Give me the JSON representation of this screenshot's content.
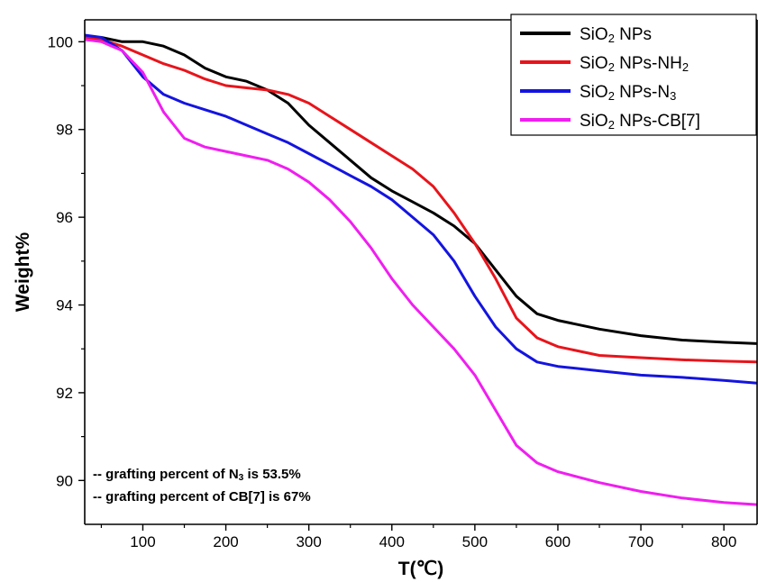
{
  "chart_data": {
    "type": "line",
    "title": "",
    "xlabel": "T(℃)",
    "ylabel": "Weight%",
    "xlim": [
      30,
      840
    ],
    "ylim": [
      89,
      100.5
    ],
    "x_ticks": [
      100,
      200,
      300,
      400,
      500,
      600,
      700,
      800
    ],
    "x_tick_labels": [
      "100",
      "200",
      "300",
      "400",
      "500",
      "600",
      "700",
      "800"
    ],
    "y_ticks": [
      90,
      92,
      94,
      96,
      98,
      100
    ],
    "y_tick_labels": [
      "90",
      "92",
      "94",
      "96",
      "98",
      "100"
    ],
    "grid": false,
    "legend_position": "top-right",
    "series": [
      {
        "name": "SiO2 NPs",
        "legend_parts": [
          {
            "text": "SiO",
            "sub": false
          },
          {
            "text": "2",
            "sub": true
          },
          {
            "text": " NPs",
            "sub": false
          }
        ],
        "color": "#000000",
        "x": [
          30,
          50,
          75,
          100,
          125,
          150,
          175,
          200,
          225,
          250,
          275,
          300,
          325,
          350,
          375,
          400,
          425,
          450,
          475,
          500,
          525,
          550,
          575,
          600,
          650,
          700,
          750,
          800,
          840
        ],
        "y": [
          100.05,
          100.1,
          100.0,
          100.0,
          99.9,
          99.7,
          99.4,
          99.2,
          99.1,
          98.9,
          98.6,
          98.1,
          97.7,
          97.3,
          96.9,
          96.6,
          96.35,
          96.1,
          95.8,
          95.4,
          94.8,
          94.2,
          93.8,
          93.65,
          93.45,
          93.3,
          93.2,
          93.15,
          93.12
        ]
      },
      {
        "name": "SiO2 NPs-NH2",
        "legend_parts": [
          {
            "text": "SiO",
            "sub": false
          },
          {
            "text": "2",
            "sub": true
          },
          {
            "text": " NPs-NH",
            "sub": false
          },
          {
            "text": "2",
            "sub": true
          }
        ],
        "color": "#e8141b",
        "x": [
          30,
          50,
          75,
          100,
          125,
          150,
          175,
          200,
          225,
          250,
          275,
          300,
          325,
          350,
          375,
          400,
          425,
          450,
          475,
          500,
          525,
          550,
          575,
          600,
          650,
          700,
          750,
          800,
          840
        ],
        "y": [
          100.1,
          100.05,
          99.9,
          99.7,
          99.5,
          99.35,
          99.15,
          99.0,
          98.95,
          98.9,
          98.8,
          98.6,
          98.3,
          98.0,
          97.7,
          97.4,
          97.1,
          96.7,
          96.1,
          95.4,
          94.6,
          93.7,
          93.25,
          93.05,
          92.85,
          92.8,
          92.75,
          92.72,
          92.7
        ]
      },
      {
        "name": "SiO2 NPs-N3",
        "legend_parts": [
          {
            "text": "SiO",
            "sub": false
          },
          {
            "text": "2",
            "sub": true
          },
          {
            "text": " NPs-N",
            "sub": false
          },
          {
            "text": "3",
            "sub": true
          }
        ],
        "color": "#1414e0",
        "x": [
          30,
          50,
          75,
          100,
          125,
          150,
          175,
          200,
          225,
          250,
          275,
          300,
          325,
          350,
          375,
          400,
          425,
          450,
          475,
          500,
          525,
          550,
          575,
          600,
          650,
          700,
          750,
          800,
          840
        ],
        "y": [
          100.15,
          100.1,
          99.8,
          99.2,
          98.8,
          98.6,
          98.45,
          98.3,
          98.1,
          97.9,
          97.7,
          97.45,
          97.2,
          96.95,
          96.7,
          96.4,
          96.0,
          95.6,
          95.0,
          94.2,
          93.5,
          93.0,
          92.7,
          92.6,
          92.5,
          92.4,
          92.35,
          92.28,
          92.22
        ]
      },
      {
        "name": "SiO2 NPs-CB[7]",
        "legend_parts": [
          {
            "text": "SiO",
            "sub": false
          },
          {
            "text": "2",
            "sub": true
          },
          {
            "text": " NPs-CB[7]",
            "sub": false
          }
        ],
        "color": "#f01ef0",
        "x": [
          30,
          50,
          75,
          100,
          125,
          150,
          175,
          200,
          225,
          250,
          275,
          300,
          325,
          350,
          375,
          400,
          425,
          450,
          475,
          500,
          525,
          550,
          575,
          600,
          650,
          700,
          750,
          800,
          840
        ],
        "y": [
          100.05,
          100.0,
          99.8,
          99.3,
          98.4,
          97.8,
          97.6,
          97.5,
          97.4,
          97.3,
          97.1,
          96.8,
          96.4,
          95.9,
          95.3,
          94.6,
          94.0,
          93.5,
          93.0,
          92.4,
          91.6,
          90.8,
          90.4,
          90.2,
          89.95,
          89.75,
          89.6,
          89.5,
          89.45
        ]
      }
    ],
    "annotations": [
      {
        "parts": [
          {
            "text": "-- grafting percent of N",
            "sub": false
          },
          {
            "text": "3",
            "sub": true
          },
          {
            "text": " is 53.5%",
            "sub": false
          }
        ]
      },
      {
        "parts": [
          {
            "text": "-- grafting percent of CB[7] is 67%",
            "sub": false
          }
        ]
      }
    ]
  }
}
